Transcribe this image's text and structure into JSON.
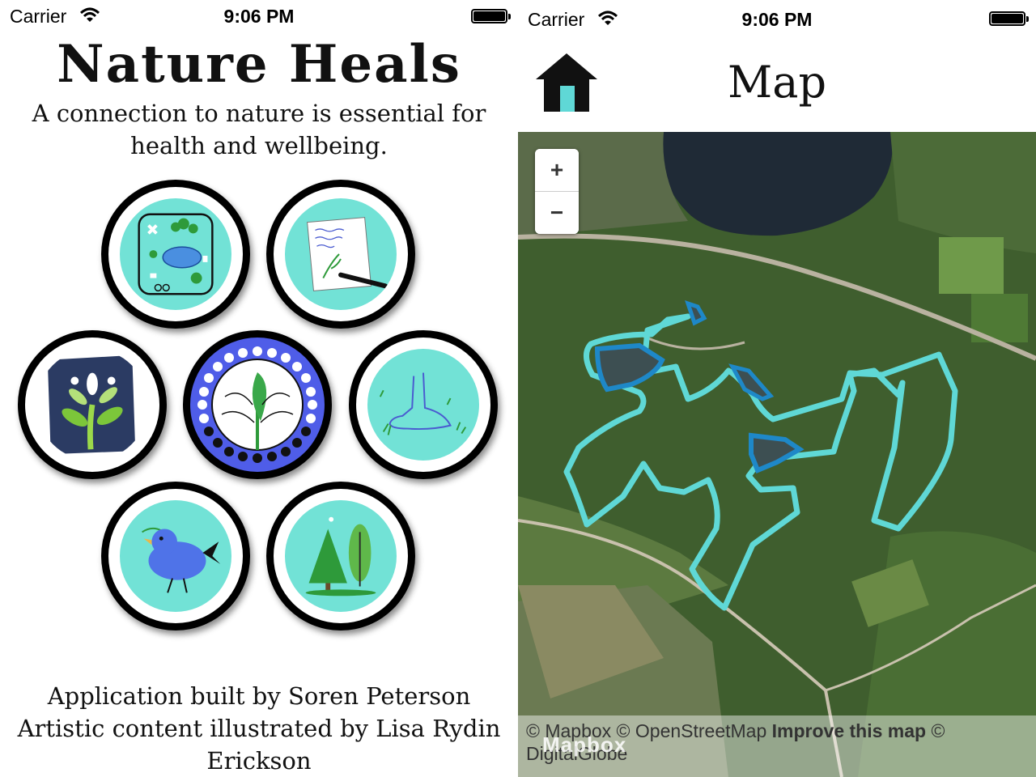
{
  "left_screen": {
    "status_bar": {
      "carrier": "Carrier",
      "time": "9:06 PM"
    },
    "title": "Nature Heals",
    "subtitle": "A connection to nature is essential for health and wellbeing.",
    "credits": {
      "line1": "Application built by Soren Peterson",
      "line2": "Artistic content illustrated by Lisa Rydin Erickson"
    },
    "medallions": [
      {
        "icon": "map-icon"
      },
      {
        "icon": "journal-icon"
      },
      {
        "icon": "tree-of-life-icon"
      },
      {
        "icon": "leaf-moon-phases-icon"
      },
      {
        "icon": "foot-icon"
      },
      {
        "icon": "bird-icon"
      },
      {
        "icon": "trees-icon"
      }
    ]
  },
  "right_screen": {
    "status_bar": {
      "carrier": "Carrier",
      "time": "9:06 PM"
    },
    "nav_title": "Map",
    "home_icon": "home-icon",
    "zoom": {
      "in": "+",
      "out": "−"
    },
    "attribution": {
      "text": "© Mapbox © OpenStreetMap",
      "improve_link": "Improve this map",
      "suffix": "© DigitalGlobe",
      "logo": "Mapbox"
    }
  },
  "colors": {
    "medallion_teal": "#72e2d6",
    "trail_cyan": "#5fd8d6",
    "lake_outline": "#1e88c8",
    "moon_ring": "#4f5de8"
  }
}
